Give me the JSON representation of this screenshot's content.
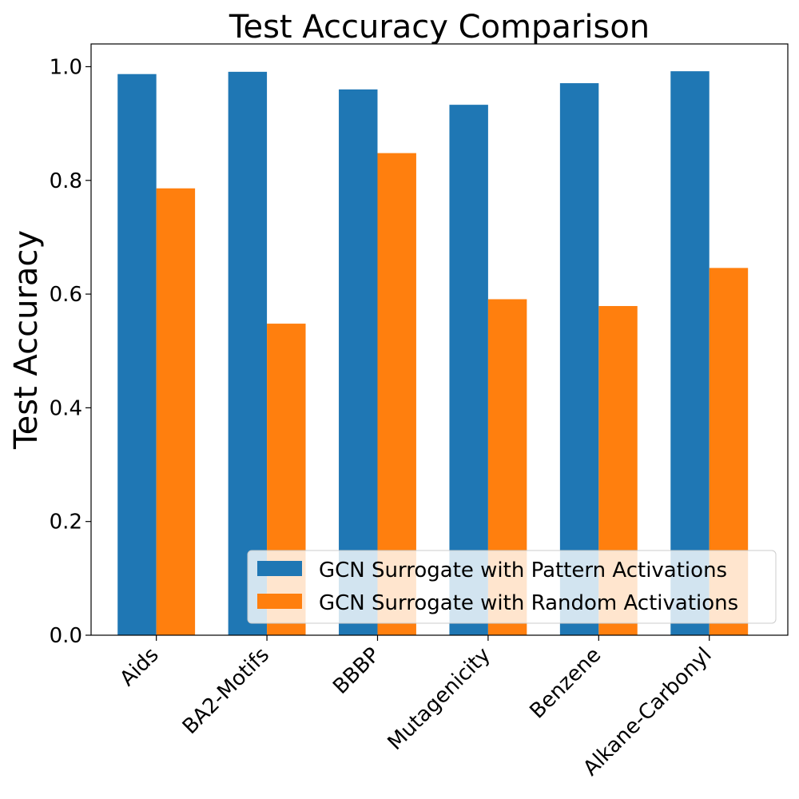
{
  "chart_data": {
    "type": "bar",
    "title": "Test Accuracy Comparison",
    "xlabel": "",
    "ylabel": "Test Accuracy",
    "categories": [
      "Aids",
      "BA2-Motifs",
      "BBBP",
      "Mutagenicity",
      "Benzene",
      "Alkane-Carbonyl"
    ],
    "series": [
      {
        "name": "GCN Surrogate with Pattern Activations",
        "color": "#1f77b4",
        "values": [
          0.987,
          0.991,
          0.96,
          0.933,
          0.971,
          0.992
        ]
      },
      {
        "name": "GCN Surrogate with Random Activations",
        "color": "#ff7f0e",
        "values": [
          0.786,
          0.548,
          0.848,
          0.591,
          0.579,
          0.646
        ]
      }
    ],
    "ylim": [
      0,
      1.04
    ],
    "yticks": [
      0.0,
      0.2,
      0.4,
      0.6,
      0.8,
      1.0
    ],
    "ytick_labels": [
      "0.0",
      "0.2",
      "0.4",
      "0.6",
      "0.8",
      "1.0"
    ],
    "xtick_rotation": "45 degrees",
    "grid": false,
    "legend_position": "lower-right"
  }
}
